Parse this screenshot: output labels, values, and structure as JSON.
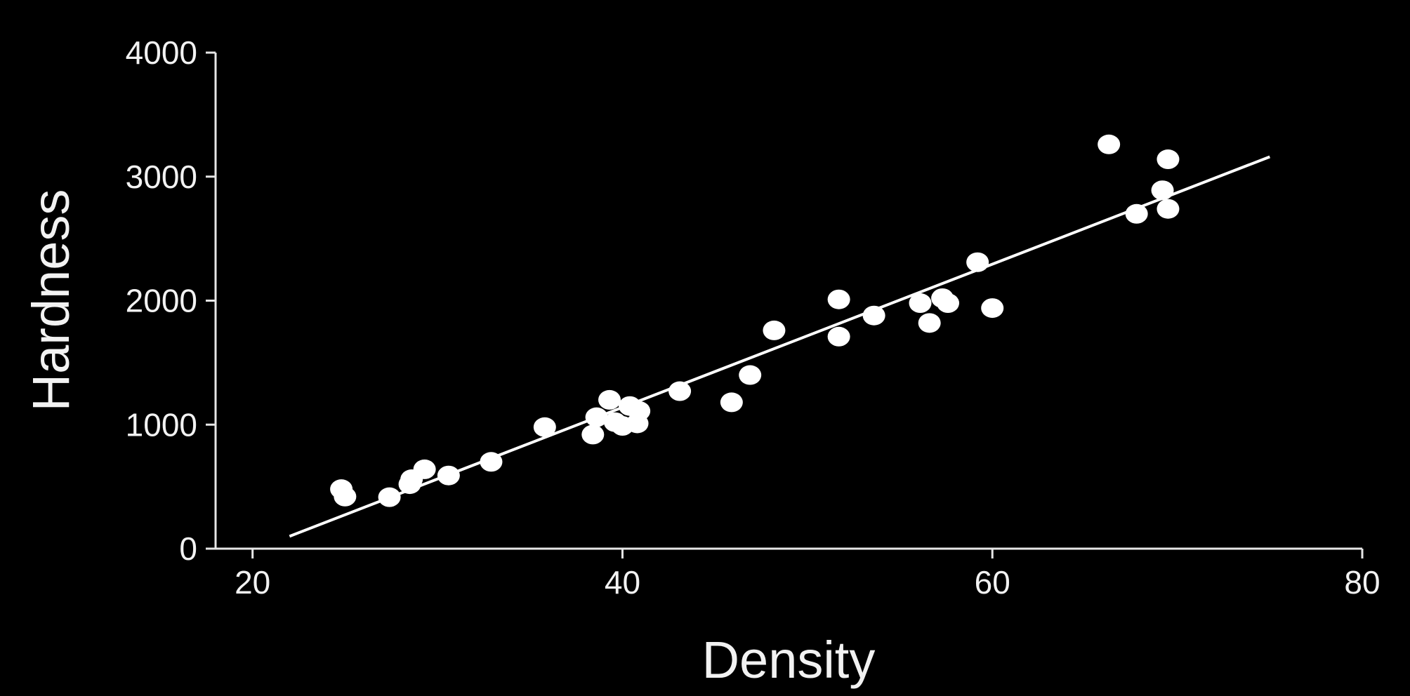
{
  "chart_data": {
    "type": "scatter",
    "title": "",
    "xlabel": "Density",
    "ylabel": "Hardness",
    "xlim": [
      18,
      80
    ],
    "ylim": [
      0,
      4000
    ],
    "x_ticks": [
      20,
      40,
      60,
      80
    ],
    "y_ticks": [
      0,
      1000,
      2000,
      3000,
      4000
    ],
    "x_tick_labels": [
      "20",
      "40",
      "60",
      "80"
    ],
    "y_tick_labels": [
      "0",
      "1000",
      "2000",
      "3000",
      "4000"
    ],
    "grid": false,
    "legend": "none",
    "colors": {
      "background": "#000000",
      "points": "#ffffff",
      "axes": "#e6e6e6",
      "text": "#f2f2f2"
    },
    "points": [
      [
        24.8,
        480
      ],
      [
        25.0,
        420
      ],
      [
        27.4,
        415
      ],
      [
        28.5,
        520
      ],
      [
        28.6,
        560
      ],
      [
        29.3,
        640
      ],
      [
        30.6,
        590
      ],
      [
        32.9,
        700
      ],
      [
        35.8,
        980
      ],
      [
        38.4,
        920
      ],
      [
        38.6,
        1060
      ],
      [
        39.3,
        1200
      ],
      [
        39.6,
        1020
      ],
      [
        40.0,
        990
      ],
      [
        40.4,
        1150
      ],
      [
        40.8,
        1010
      ],
      [
        40.9,
        1110
      ],
      [
        43.1,
        1270
      ],
      [
        45.9,
        1180
      ],
      [
        46.9,
        1400
      ],
      [
        48.2,
        1760
      ],
      [
        51.7,
        2010
      ],
      [
        51.7,
        1710
      ],
      [
        53.6,
        1880
      ],
      [
        56.1,
        1980
      ],
      [
        56.6,
        1820
      ],
      [
        57.3,
        2020
      ],
      [
        57.6,
        1980
      ],
      [
        59.2,
        2310
      ],
      [
        60.0,
        1940
      ],
      [
        66.3,
        3260
      ],
      [
        67.8,
        2700
      ],
      [
        69.2,
        2890
      ],
      [
        69.5,
        2740
      ],
      [
        69.5,
        3140
      ]
    ],
    "fit_line": {
      "x": [
        22.0,
        75.0
      ],
      "y": [
        100,
        3160
      ]
    }
  }
}
